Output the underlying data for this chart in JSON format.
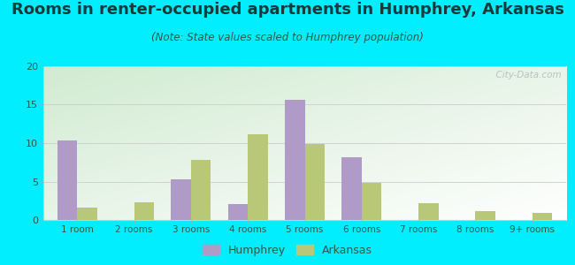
{
  "title": "Rooms in renter-occupied apartments in Humphrey, Arkansas",
  "subtitle": "(Note: State values scaled to Humphrey population)",
  "categories": [
    "1 room",
    "2 rooms",
    "3 rooms",
    "4 rooms",
    "5 rooms",
    "6 rooms",
    "7 rooms",
    "8 rooms",
    "9+ rooms"
  ],
  "humphrey_values": [
    10.4,
    0,
    5.3,
    2.1,
    15.6,
    8.2,
    0,
    0,
    0
  ],
  "arkansas_values": [
    1.6,
    2.3,
    7.8,
    11.2,
    9.9,
    4.8,
    2.2,
    1.1,
    0.9
  ],
  "humphrey_color": "#b09ac8",
  "arkansas_color": "#b8c878",
  "ylim": [
    0,
    20
  ],
  "yticks": [
    0,
    5,
    10,
    15,
    20
  ],
  "background_outer": "#00eeff",
  "bar_width": 0.35,
  "title_fontsize": 13,
  "subtitle_fontsize": 8.5,
  "watermark": "  City-Data.com"
}
